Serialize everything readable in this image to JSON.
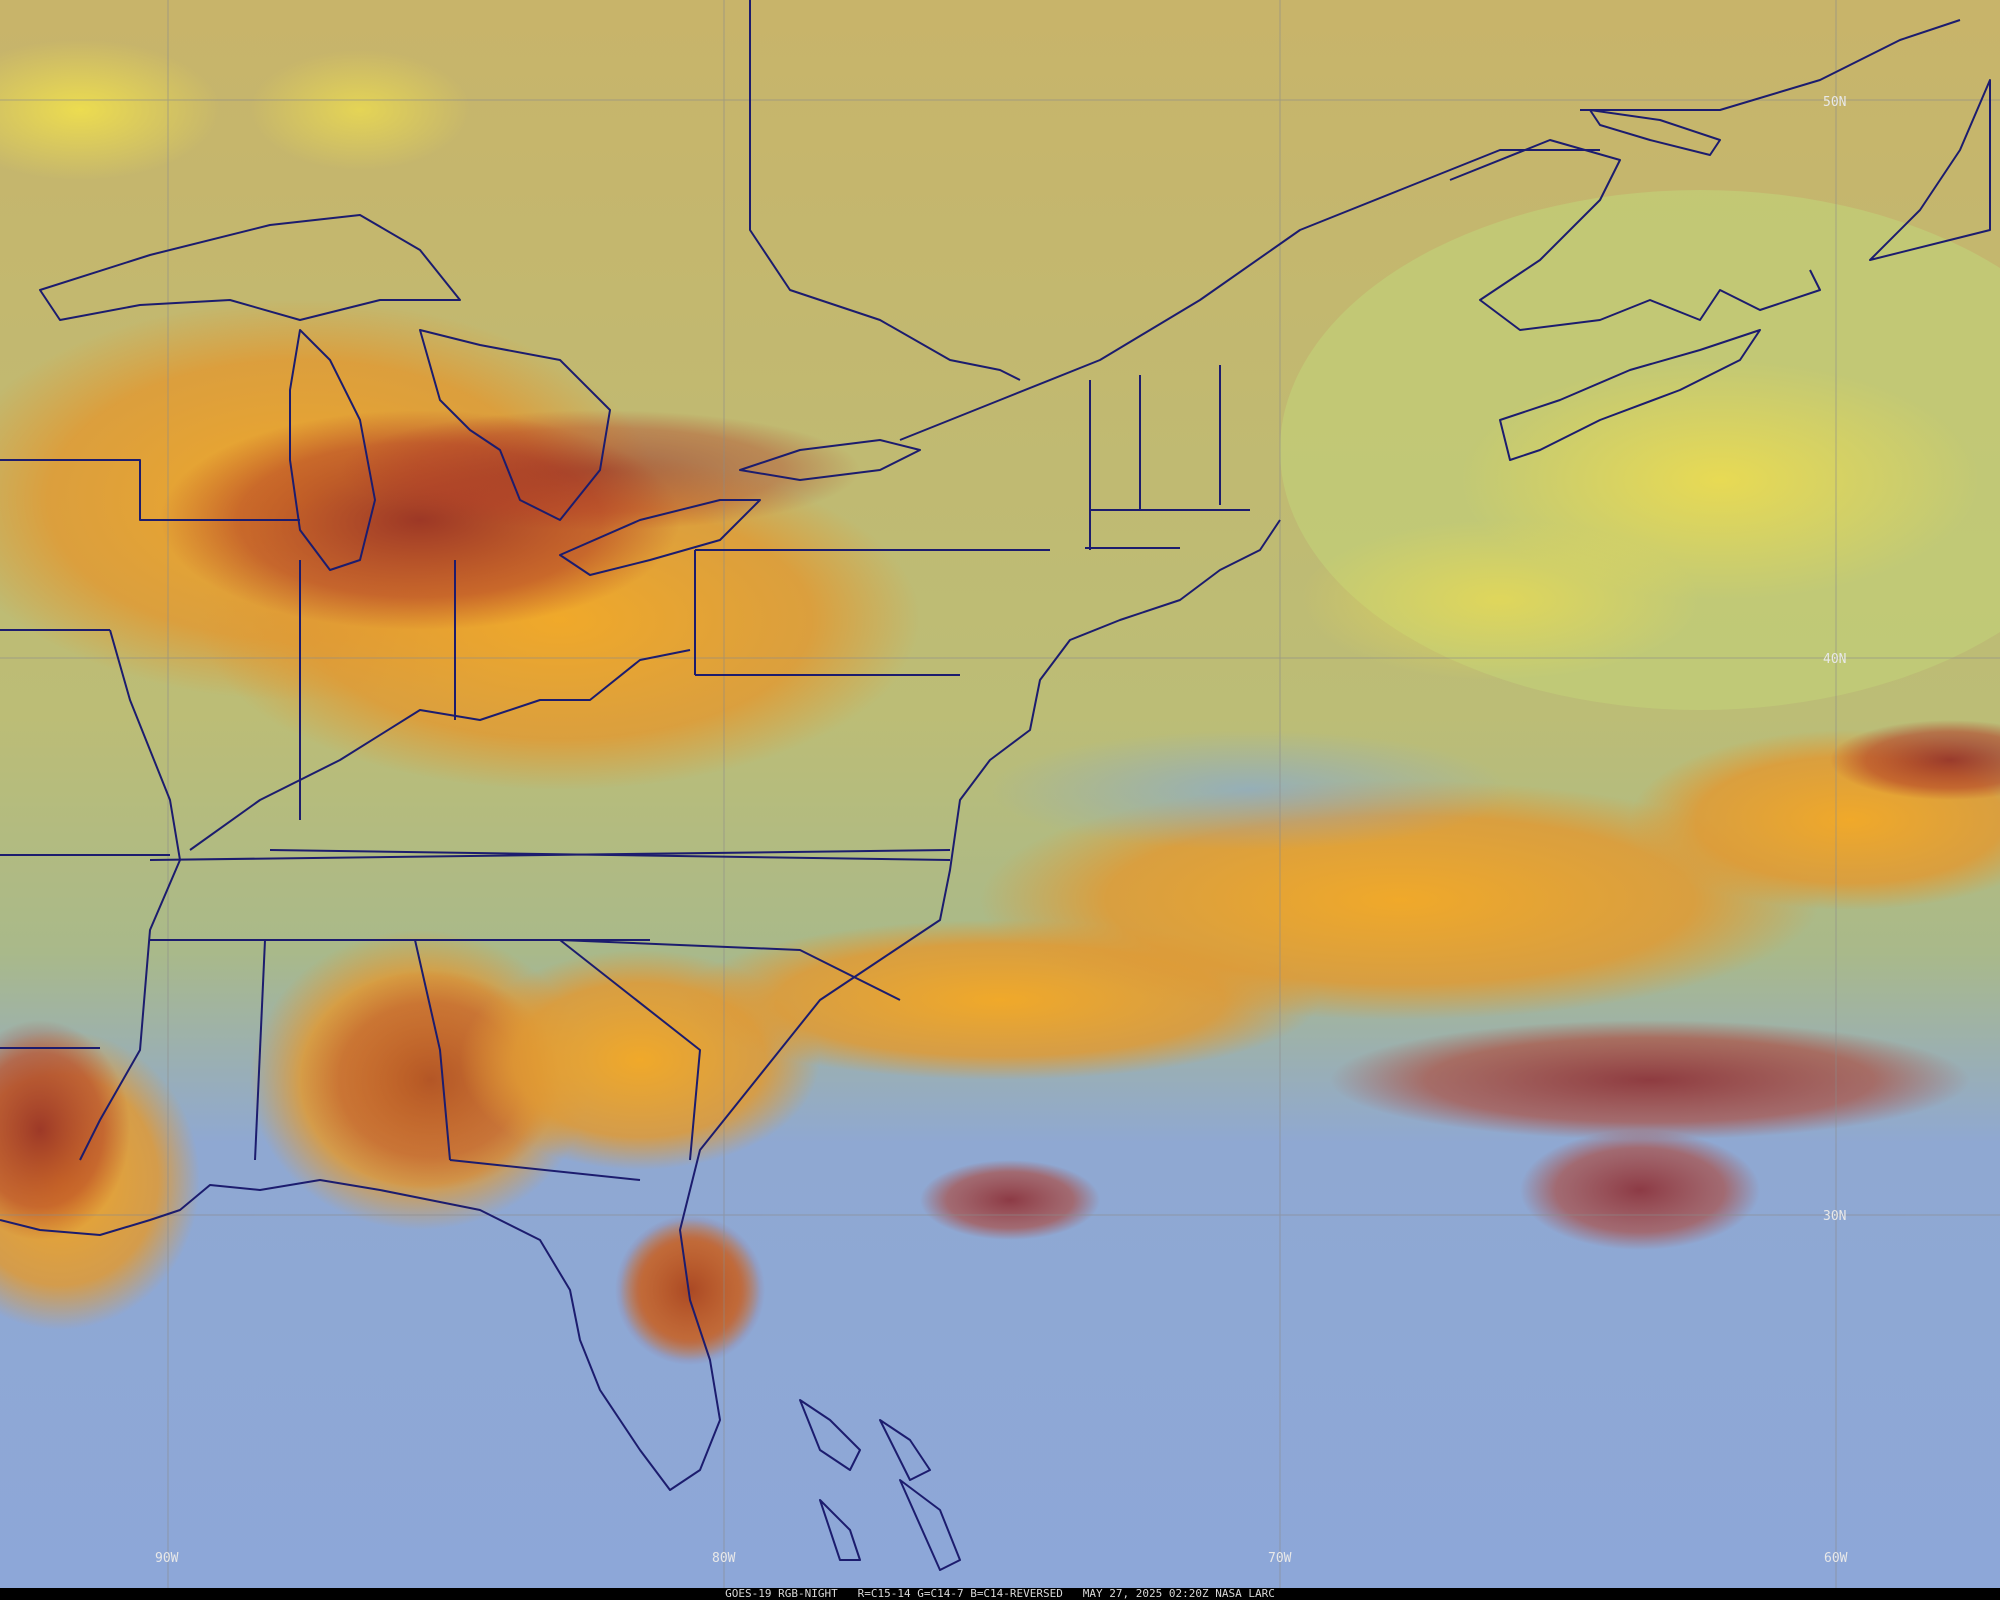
{
  "caption": "GOES-19 RGB-NIGHT   R=C15-14 G=C14-7 B=C14-REVERSED   MAY 27, 2025 02:20Z NASA LARC",
  "grid": {
    "longitude_labels": [
      "90W",
      "80W",
      "70W",
      "60W"
    ],
    "latitude_labels": [
      "50N",
      "40N",
      "30N"
    ]
  },
  "colors": {
    "clear_land": "#c9b66a",
    "clear_ocean_north": "#b7c27a",
    "clear_ocean_south": "#8aa6d6",
    "high_cloud_orange": "#e8a22c",
    "deep_convection_red": "#a8241e",
    "low_cloud_yellow": "#e6d64a",
    "boundary_lines": "#1a1a6a"
  }
}
